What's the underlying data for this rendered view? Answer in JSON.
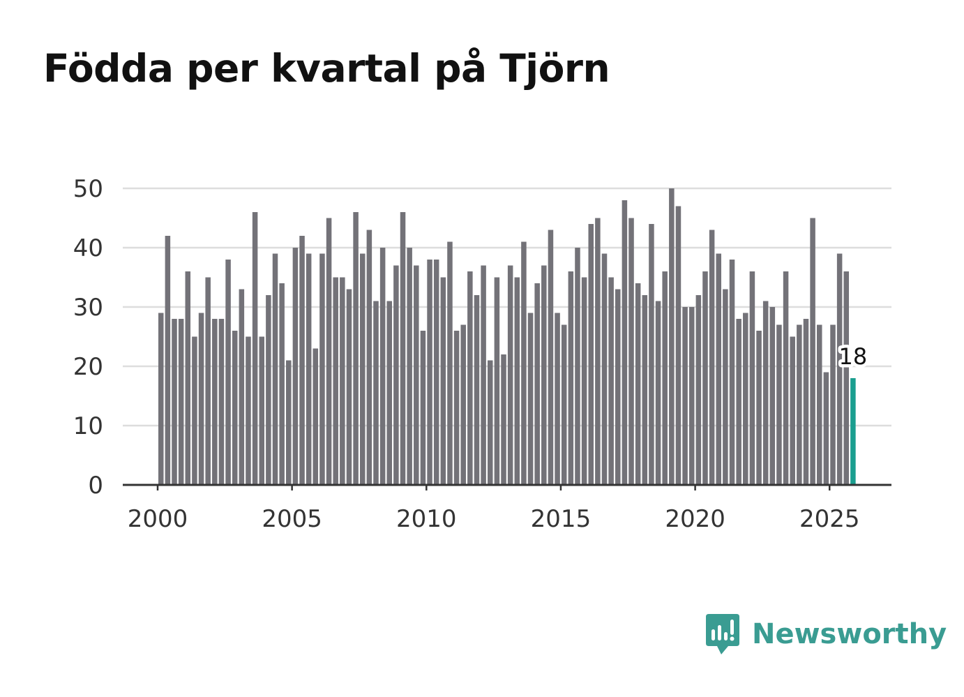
{
  "title": "Födda per kvartal på Tjörn",
  "brand": {
    "name": "Newsworthy",
    "icon": "newsworthy-logo-icon",
    "color": "#3a9c92"
  },
  "colors": {
    "bar": "#737278",
    "highlight": "#1a9e8f",
    "grid": "#dddddd",
    "axis": "#333333"
  },
  "chart_data": {
    "type": "bar",
    "title": "Födda per kvartal på Tjörn",
    "xlabel": "",
    "ylabel": "",
    "ylim": [
      0,
      50
    ],
    "yticks": [
      0,
      10,
      20,
      30,
      40,
      50
    ],
    "xticks": [
      2000,
      2005,
      2010,
      2015,
      2020,
      2025
    ],
    "xlim": [
      2000,
      2027.3
    ],
    "x_start_year": 2000,
    "periods_per_year": 4,
    "grid": true,
    "highlight_last": true,
    "last_value_label": "18",
    "values": [
      29,
      42,
      28,
      28,
      36,
      25,
      29,
      35,
      28,
      28,
      38,
      26,
      33,
      25,
      46,
      25,
      32,
      39,
      34,
      21,
      40,
      42,
      39,
      23,
      39,
      45,
      35,
      35,
      33,
      46,
      39,
      43,
      31,
      40,
      31,
      37,
      46,
      40,
      37,
      26,
      38,
      38,
      35,
      41,
      26,
      27,
      36,
      32,
      37,
      21,
      35,
      22,
      37,
      35,
      41,
      29,
      34,
      37,
      43,
      29,
      27,
      36,
      40,
      35,
      44,
      45,
      39,
      35,
      33,
      48,
      45,
      34,
      32,
      44,
      31,
      36,
      50,
      47,
      30,
      30,
      32,
      36,
      43,
      39,
      33,
      38,
      28,
      29,
      36,
      26,
      31,
      30,
      27,
      36,
      25,
      27,
      28,
      45,
      27,
      19,
      27,
      39,
      36,
      18
    ]
  }
}
